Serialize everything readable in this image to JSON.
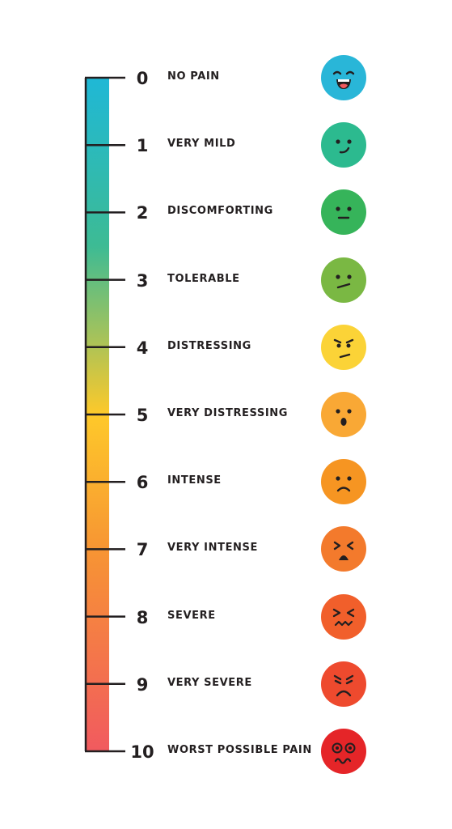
{
  "scale": {
    "levels": [
      {
        "value": "0",
        "label": "NO PAIN",
        "face_icon": "grinning-face-icon",
        "color": "#29b6d8"
      },
      {
        "value": "1",
        "label": "VERY MILD",
        "face_icon": "slight-smile-face-icon",
        "color": "#2cba8f"
      },
      {
        "value": "2",
        "label": "DISCOMFORTING",
        "face_icon": "neutral-face-icon",
        "color": "#36b45a"
      },
      {
        "value": "3",
        "label": "TOLERABLE",
        "face_icon": "unsure-face-icon",
        "color": "#7ab843"
      },
      {
        "value": "4",
        "label": "DISTRESSING",
        "face_icon": "annoyed-face-icon",
        "color": "#fbd337"
      },
      {
        "value": "5",
        "label": "VERY DISTRESSING",
        "face_icon": "surprised-face-icon",
        "color": "#f9a835"
      },
      {
        "value": "6",
        "label": "INTENSE",
        "face_icon": "frowning-face-icon",
        "color": "#f69522"
      },
      {
        "value": "7",
        "label": "VERY INTENSE",
        "face_icon": "anguished-face-icon",
        "color": "#f37a2c"
      },
      {
        "value": "8",
        "label": "SEVERE",
        "face_icon": "grimacing-face-icon",
        "color": "#f15f2b"
      },
      {
        "value": "9",
        "label": "VERY SEVERE",
        "face_icon": "angry-face-icon",
        "color": "#ee4a2e"
      },
      {
        "value": "10",
        "label": "WORST POSSIBLE PAIN",
        "face_icon": "dizzy-pain-face-icon",
        "color": "#e52528"
      }
    ],
    "bar_gradient": [
      "#1fb8d6",
      "#3dbb94",
      "#fec92a",
      "#f79533",
      "#f15a5f"
    ],
    "line_color": "#231f20",
    "face_feature_color": "#231f20"
  }
}
